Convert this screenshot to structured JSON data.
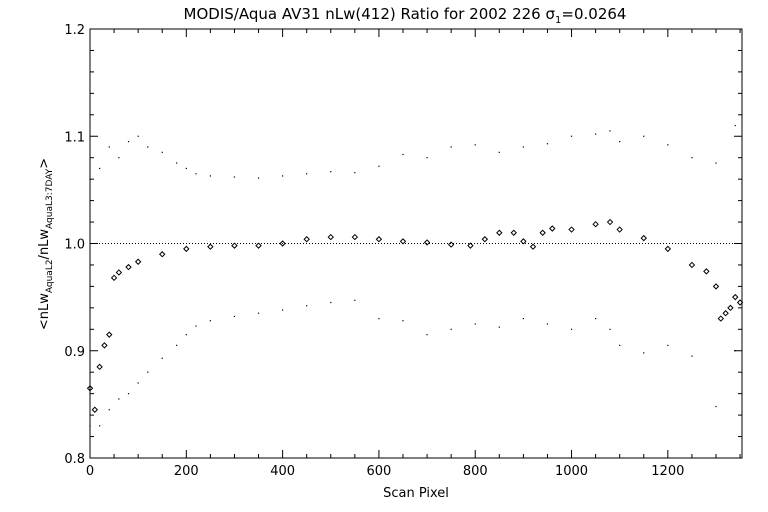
{
  "chart_data": {
    "type": "scatter",
    "title": {
      "main": "MODIS/Aqua AV31 nLw(412) Ratio for 2002 226 ",
      "sigma_symbol": "σ",
      "sigma_sub": "1",
      "sigma_value": "=0.0264"
    },
    "xlabel": "Scan Pixel",
    "ylabel": {
      "prefix": "<nLw",
      "sub1": "AquaL2",
      "mid": "/nLw",
      "sub2": "AquaL3:7DAY",
      "suffix": ">"
    },
    "xlim": [
      0,
      1354
    ],
    "ylim": [
      0.8,
      1.2
    ],
    "xticks": [
      0,
      200,
      400,
      600,
      800,
      1000,
      1200
    ],
    "yticks": [
      0.8,
      0.9,
      1.0,
      1.1,
      1.2
    ],
    "xtick_labels": [
      "0",
      "200",
      "400",
      "600",
      "800",
      "1000",
      "1200"
    ],
    "ytick_labels": [
      "0.8",
      "0.9",
      "1.0",
      "1.1",
      "1.2"
    ],
    "reference_line": 1.0,
    "series": [
      {
        "marker": "diamond",
        "x": [
          0,
          10,
          20,
          30,
          40,
          50,
          60,
          80,
          100,
          150,
          200,
          250,
          300,
          350,
          400,
          450,
          500,
          550,
          600,
          650,
          700,
          750,
          790,
          820,
          850,
          880,
          900,
          920,
          940,
          960,
          1000,
          1050,
          1080,
          1100,
          1150,
          1200,
          1250,
          1280,
          1300,
          1310,
          1320,
          1330,
          1340,
          1350
        ],
        "y": [
          0.865,
          0.845,
          0.885,
          0.905,
          0.915,
          0.968,
          0.973,
          0.978,
          0.983,
          0.99,
          0.995,
          0.997,
          0.998,
          0.998,
          1.0,
          1.004,
          1.006,
          1.006,
          1.004,
          1.002,
          1.001,
          0.999,
          0.998,
          1.004,
          1.01,
          1.01,
          1.002,
          0.997,
          1.01,
          1.014,
          1.013,
          1.018,
          1.02,
          1.013,
          1.005,
          0.995,
          0.98,
          0.974,
          0.96,
          0.93,
          0.935,
          0.94,
          0.95,
          0.945
        ]
      },
      {
        "marker": "dot",
        "name_hint": "upper",
        "x": [
          0,
          20,
          40,
          60,
          80,
          100,
          120,
          150,
          180,
          200,
          220,
          250,
          300,
          350,
          400,
          450,
          500,
          550,
          600,
          650,
          700,
          750,
          800,
          850,
          900,
          950,
          1000,
          1050,
          1080,
          1100,
          1150,
          1200,
          1250,
          1300,
          1340
        ],
        "y": [
          1.06,
          1.07,
          1.09,
          1.08,
          1.095,
          1.1,
          1.09,
          1.085,
          1.075,
          1.07,
          1.065,
          1.063,
          1.062,
          1.061,
          1.063,
          1.065,
          1.067,
          1.066,
          1.072,
          1.083,
          1.08,
          1.09,
          1.092,
          1.085,
          1.09,
          1.093,
          1.1,
          1.102,
          1.105,
          1.095,
          1.1,
          1.092,
          1.08,
          1.075,
          1.11
        ]
      },
      {
        "marker": "dot",
        "name_hint": "lower",
        "x": [
          0,
          20,
          40,
          60,
          80,
          100,
          120,
          150,
          180,
          200,
          220,
          250,
          300,
          350,
          400,
          450,
          500,
          550,
          600,
          650,
          700,
          750,
          800,
          850,
          900,
          950,
          1000,
          1050,
          1080,
          1100,
          1150,
          1200,
          1250,
          1300,
          1340
        ],
        "y": [
          0.83,
          0.83,
          0.845,
          0.855,
          0.86,
          0.87,
          0.88,
          0.893,
          0.905,
          0.915,
          0.923,
          0.928,
          0.932,
          0.935,
          0.938,
          0.942,
          0.945,
          0.947,
          0.93,
          0.928,
          0.915,
          0.92,
          0.925,
          0.922,
          0.93,
          0.925,
          0.92,
          0.93,
          0.92,
          0.905,
          0.898,
          0.905,
          0.895,
          0.848,
          0.9
        ]
      }
    ]
  }
}
